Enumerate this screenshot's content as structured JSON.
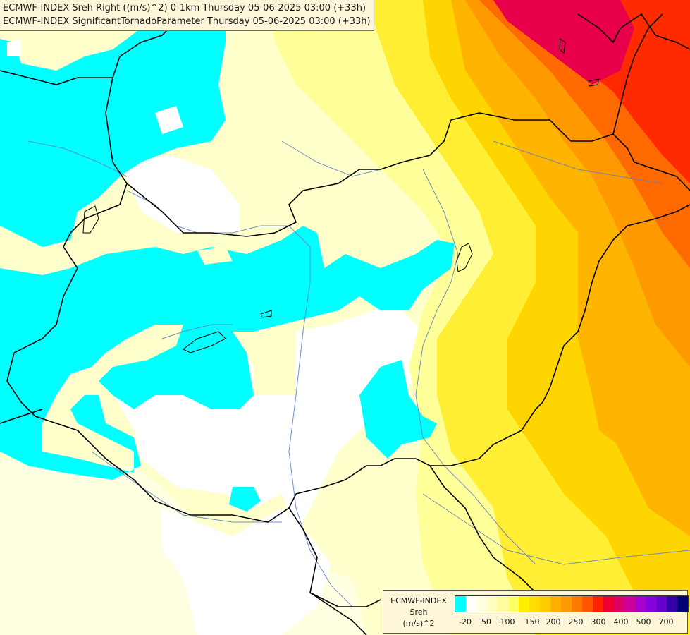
{
  "titles": {
    "line1": "ECMWF-INDEX Sreh Right ((m/s)^2) 0-1km Thursday 05-06-2025 03:00 (+33h)",
    "line2": "ECMWF-INDEX SignificantTornadoParameter Thursday 05-06-2025 03:00 (+33h)"
  },
  "legend": {
    "model": "ECMWF-INDEX",
    "parameter": "Sreh",
    "unit": "(m/s)^2",
    "colors": [
      "#00ffff",
      "#ffffff",
      "#ffffe0",
      "#ffffbf",
      "#fffc9e",
      "#ffff66",
      "#ffee00",
      "#ffdd00",
      "#ffcc00",
      "#ffb000",
      "#ff9900",
      "#ff7a00",
      "#ff5500",
      "#ff2200",
      "#ee0033",
      "#dd0066",
      "#cc0099",
      "#aa00cc",
      "#8800dd",
      "#6600cc",
      "#3300aa",
      "#000077"
    ],
    "ticks": [
      "-20",
      "50",
      "100",
      "150",
      "200",
      "250",
      "300",
      "400",
      "500",
      "700"
    ]
  }
}
